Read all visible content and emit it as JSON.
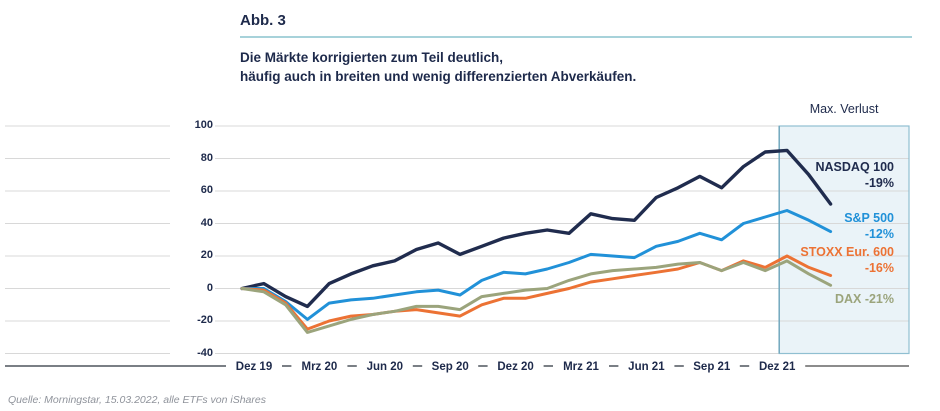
{
  "header": {
    "figure_label": "Abb. 3",
    "subtitle_line1": "Die Märkte korrigierten zum Teil deutlich,",
    "subtitle_line2": "häufig auch in breiten und wenig differenzierten Abverkäufen.",
    "accent_rule_color": "#A7D2DA",
    "text_color": "#1E2A4B"
  },
  "footer": {
    "source": "Quelle: Morningstar, 15.03.2022, alle ETFs von iShares"
  },
  "chart_data": {
    "type": "line",
    "title": "",
    "xlabel": "",
    "ylabel": "",
    "ylim": [
      -40,
      100
    ],
    "y_ticks": [
      100,
      80,
      60,
      40,
      20,
      0,
      -20,
      -40
    ],
    "grid": true,
    "x_tick_labels": [
      "Dez 19",
      "Mrz 20",
      "Jun 20",
      "Sep 20",
      "Dez 20",
      "Mrz 21",
      "Jun 21",
      "Sep 21",
      "Dez 21"
    ],
    "points_per_tick": 3,
    "highlight": {
      "label": "Max. Verlust",
      "starts_at_tick": "Dez 21",
      "fill": "#EAF3F8",
      "border": "#8FBFD1"
    },
    "series": [
      {
        "name": "NASDAQ 100",
        "loss_label": "-19%",
        "color": "#202C4E",
        "single_line_label": false,
        "values": [
          0,
          3,
          -5,
          -11,
          3,
          9,
          14,
          17,
          24,
          28,
          21,
          26,
          31,
          34,
          36,
          34,
          46,
          43,
          42,
          56,
          62,
          69,
          62,
          75,
          84,
          85,
          70,
          52
        ]
      },
      {
        "name": "S&P 500",
        "loss_label": "-12%",
        "color": "#2191D8",
        "single_line_label": false,
        "values": [
          0,
          0,
          -8,
          -19,
          -9,
          -7,
          -6,
          -4,
          -2,
          -1,
          -4,
          5,
          10,
          9,
          12,
          16,
          21,
          20,
          19,
          26,
          29,
          34,
          30,
          40,
          44,
          48,
          42,
          35
        ]
      },
      {
        "name": "STOXX Eur. 600",
        "loss_label": "-16%",
        "color": "#EC7234",
        "single_line_label": false,
        "values": [
          0,
          -1,
          -9,
          -25,
          -20,
          -17,
          -16,
          -14,
          -13,
          -15,
          -17,
          -10,
          -6,
          -6,
          -3,
          0,
          4,
          6,
          8,
          10,
          12,
          16,
          11,
          17,
          13,
          20,
          13,
          8
        ]
      },
      {
        "name": "DAX",
        "loss_label": "-21%",
        "color": "#9BA47C",
        "single_line_label": true,
        "values": [
          0,
          -2,
          -10,
          -27,
          -23,
          -19,
          -16,
          -14,
          -11,
          -11,
          -13,
          -5,
          -3,
          -1,
          0,
          5,
          9,
          11,
          12,
          13,
          15,
          16,
          11,
          16,
          11,
          17,
          9,
          2
        ]
      }
    ]
  }
}
